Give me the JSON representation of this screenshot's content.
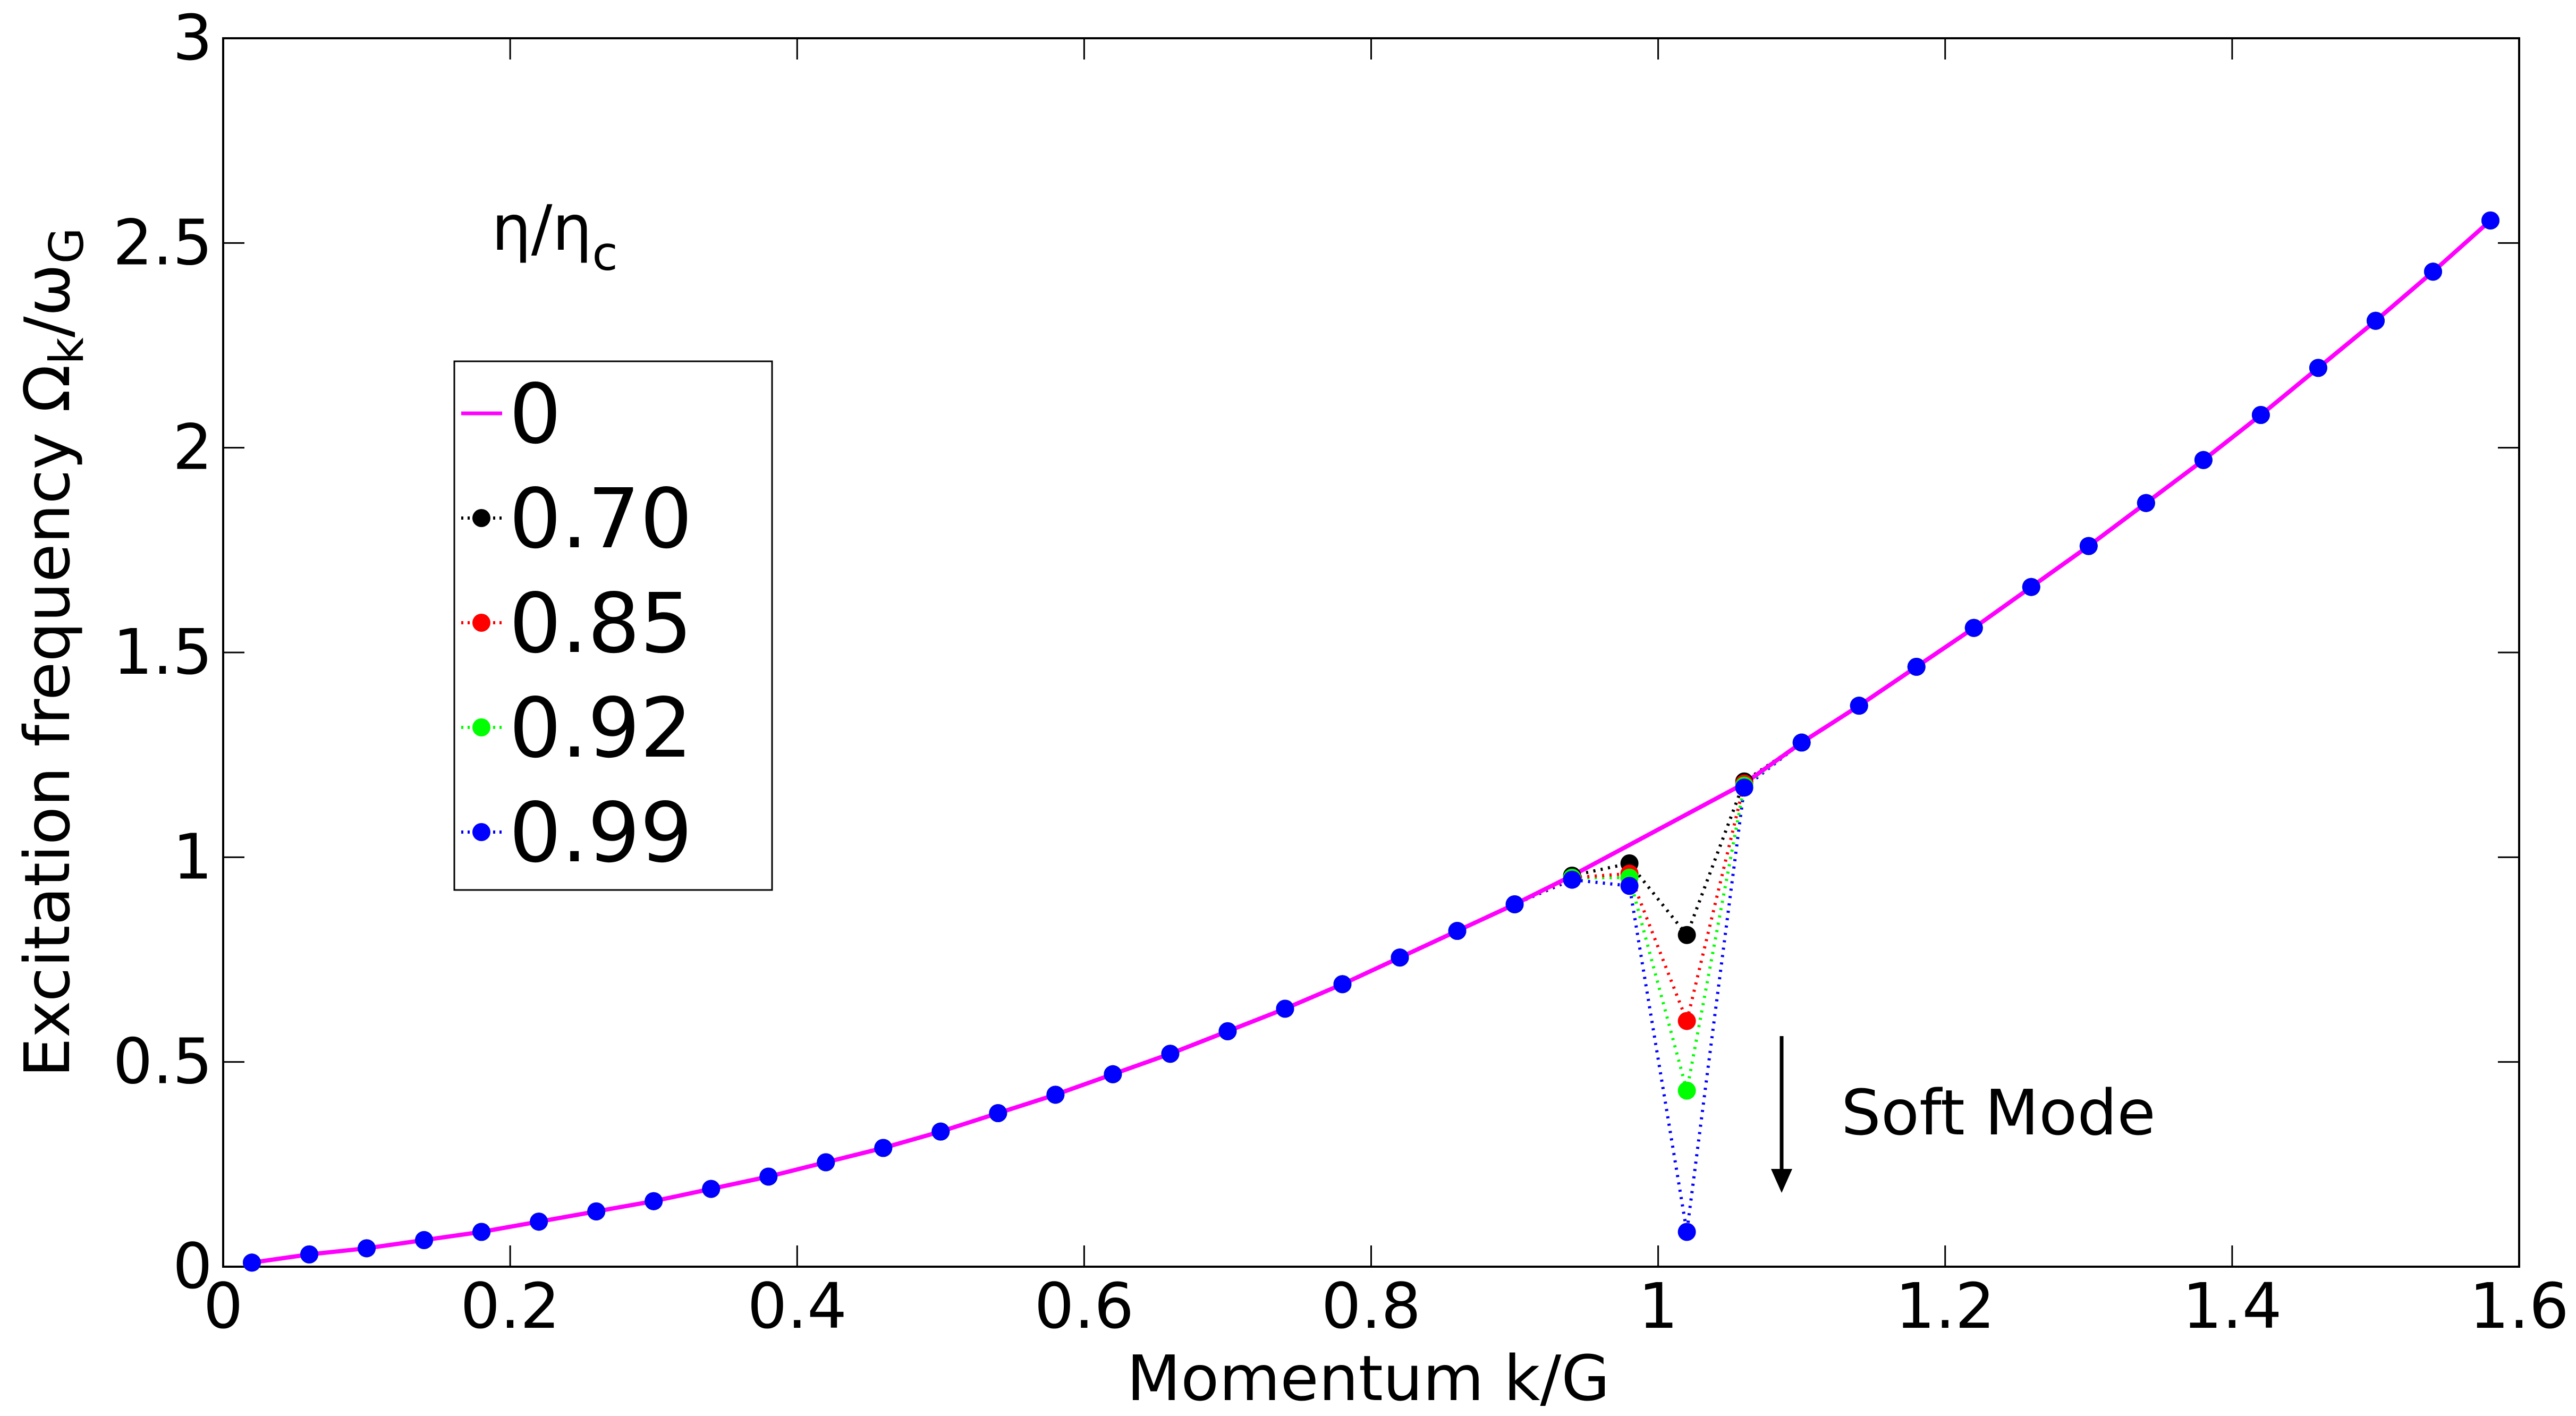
{
  "chart_data": {
    "type": "line",
    "xlabel": "Momentum k/G",
    "ylabel": {
      "main": "Excitation  frequency Ω",
      "sub1": "k",
      "mid": "/ω",
      "sub2": "G"
    },
    "xlim": [
      0,
      1.6
    ],
    "ylim": [
      0,
      3
    ],
    "xticks": [
      "0",
      "0.2",
      "0.4",
      "0.6",
      "0.8",
      "1",
      "1.2",
      "1.4",
      "1.6"
    ],
    "yticks": [
      "0",
      "0.5",
      "1",
      "1.5",
      "2",
      "2.5",
      "3"
    ],
    "grid": false,
    "legend_title": {
      "main": "η/η",
      "sub": "c"
    },
    "legend_placement": "upper-left",
    "annotation": "Soft Mode",
    "x": [
      0.02,
      0.06,
      0.1,
      0.14,
      0.18,
      0.22,
      0.26,
      0.3,
      0.34,
      0.38,
      0.42,
      0.46,
      0.5,
      0.54,
      0.58,
      0.62,
      0.66,
      0.7,
      0.74,
      0.78,
      0.82,
      0.86,
      0.9,
      0.94,
      0.98,
      1.02,
      1.06,
      1.1,
      1.14,
      1.18,
      1.22,
      1.26,
      1.3,
      1.34,
      1.38,
      1.42,
      1.46,
      1.5,
      1.54,
      1.58
    ],
    "series": [
      {
        "name": "0",
        "color": "#ff00ff",
        "style": "solid",
        "markers": false,
        "values": [
          0.01,
          0.03,
          0.045,
          0.065,
          0.085,
          0.11,
          0.135,
          0.16,
          0.19,
          0.22,
          0.255,
          0.29,
          0.33,
          0.375,
          0.42,
          0.47,
          0.52,
          0.575,
          0.63,
          0.69,
          0.755,
          0.82,
          0.885,
          0.955,
          1.03,
          1.105,
          1.18,
          1.28,
          1.37,
          1.465,
          1.56,
          1.66,
          1.76,
          1.865,
          1.97,
          2.08,
          2.195,
          2.31,
          2.43,
          2.555
        ]
      },
      {
        "name": "0.70",
        "color": "#000000",
        "style": "dotted",
        "markers": true,
        "values": [
          0.01,
          0.03,
          0.045,
          0.065,
          0.085,
          0.11,
          0.135,
          0.16,
          0.19,
          0.22,
          0.255,
          0.29,
          0.33,
          0.375,
          0.42,
          0.47,
          0.52,
          0.575,
          0.63,
          0.69,
          0.755,
          0.82,
          0.885,
          0.955,
          0.985,
          0.81,
          1.185,
          1.28,
          1.37,
          1.465,
          1.56,
          1.66,
          1.76,
          1.865,
          1.97,
          2.08,
          2.195,
          2.31,
          2.43,
          2.555
        ]
      },
      {
        "name": "0.85",
        "color": "#ff0000",
        "style": "dotted",
        "markers": true,
        "values": [
          0.01,
          0.03,
          0.045,
          0.065,
          0.085,
          0.11,
          0.135,
          0.16,
          0.19,
          0.22,
          0.255,
          0.29,
          0.33,
          0.375,
          0.42,
          0.47,
          0.52,
          0.575,
          0.63,
          0.69,
          0.755,
          0.82,
          0.885,
          0.95,
          0.96,
          0.6,
          1.18,
          1.28,
          1.37,
          1.465,
          1.56,
          1.66,
          1.76,
          1.865,
          1.97,
          2.08,
          2.195,
          2.31,
          2.43,
          2.555
        ]
      },
      {
        "name": "0.92",
        "color": "#00ff00",
        "style": "dotted",
        "markers": true,
        "values": [
          0.01,
          0.03,
          0.045,
          0.065,
          0.085,
          0.11,
          0.135,
          0.16,
          0.19,
          0.22,
          0.255,
          0.29,
          0.33,
          0.375,
          0.42,
          0.47,
          0.52,
          0.575,
          0.63,
          0.69,
          0.755,
          0.82,
          0.885,
          0.95,
          0.95,
          0.43,
          1.175,
          1.28,
          1.37,
          1.465,
          1.56,
          1.66,
          1.76,
          1.865,
          1.97,
          2.08,
          2.195,
          2.31,
          2.43,
          2.555
        ]
      },
      {
        "name": "0.99",
        "color": "#0000ff",
        "style": "dotted",
        "markers": true,
        "values": [
          0.01,
          0.03,
          0.045,
          0.065,
          0.085,
          0.11,
          0.135,
          0.16,
          0.19,
          0.22,
          0.255,
          0.29,
          0.33,
          0.375,
          0.42,
          0.47,
          0.52,
          0.575,
          0.63,
          0.69,
          0.755,
          0.82,
          0.885,
          0.945,
          0.93,
          0.085,
          1.17,
          1.28,
          1.37,
          1.465,
          1.56,
          1.66,
          1.76,
          1.865,
          1.97,
          2.08,
          2.195,
          2.31,
          2.43,
          2.555
        ]
      }
    ]
  }
}
